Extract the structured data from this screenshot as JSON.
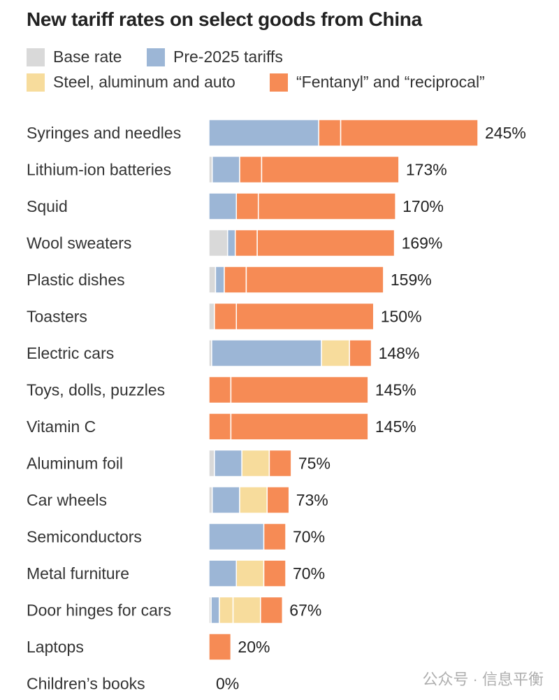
{
  "title": "New tariff rates on select goods from China",
  "legend": [
    {
      "label": "Base rate",
      "color": "#d9d9d9"
    },
    {
      "label": "Pre-2025 tariffs",
      "color": "#9cb6d6"
    },
    {
      "label": "Steel, aluminum and auto",
      "color": "#f7dc9c"
    },
    {
      "label": "“Fentanyl” and “reciprocal”",
      "color": "#f68b55"
    }
  ],
  "chart_data": {
    "type": "bar",
    "orientation": "horizontal",
    "stacked": true,
    "title": "New tariff rates on select goods from China",
    "unit": "%",
    "categories": [
      "Syringes and needles",
      "Lithium-ion batteries",
      "Squid",
      "Wool sweaters",
      "Plastic dishes",
      "Toasters",
      "Electric cars",
      "Toys, dolls, puzzles",
      "Vitamin C",
      "Aluminum foil",
      "Car wheels",
      "Semiconductors",
      "Metal furniture",
      "Door hinges for cars",
      "Laptops",
      "Children’s books"
    ],
    "totals": [
      "245%",
      "173%",
      "170%",
      "169%",
      "159%",
      "150%",
      "148%",
      "145%",
      "145%",
      "75%",
      "73%",
      "70%",
      "70%",
      "67%",
      "20%",
      "0%"
    ],
    "segments": [
      [
        {
          "type": "pre2025",
          "value": 100
        },
        {
          "type": "fentanyl",
          "value": 20
        },
        {
          "type": "fentanyl",
          "value": 125
        }
      ],
      [
        {
          "type": "base",
          "value": 3
        },
        {
          "type": "pre2025",
          "value": 25
        },
        {
          "type": "fentanyl",
          "value": 20
        },
        {
          "type": "fentanyl",
          "value": 125
        }
      ],
      [
        {
          "type": "pre2025",
          "value": 25
        },
        {
          "type": "fentanyl",
          "value": 20
        },
        {
          "type": "fentanyl",
          "value": 125
        }
      ],
      [
        {
          "type": "base",
          "value": 17
        },
        {
          "type": "pre2025",
          "value": 7
        },
        {
          "type": "fentanyl",
          "value": 20
        },
        {
          "type": "fentanyl",
          "value": 125
        }
      ],
      [
        {
          "type": "base",
          "value": 6
        },
        {
          "type": "pre2025",
          "value": 8
        },
        {
          "type": "fentanyl",
          "value": 20
        },
        {
          "type": "fentanyl",
          "value": 125
        }
      ],
      [
        {
          "type": "base",
          "value": 5
        },
        {
          "type": "fentanyl",
          "value": 20
        },
        {
          "type": "fentanyl",
          "value": 125
        }
      ],
      [
        {
          "type": "base",
          "value": 2.5
        },
        {
          "type": "pre2025",
          "value": 100
        },
        {
          "type": "steel",
          "value": 25.5
        },
        {
          "type": "fentanyl",
          "value": 20
        }
      ],
      [
        {
          "type": "fentanyl",
          "value": 20
        },
        {
          "type": "fentanyl",
          "value": 125
        }
      ],
      [
        {
          "type": "fentanyl",
          "value": 20
        },
        {
          "type": "fentanyl",
          "value": 125
        }
      ],
      [
        {
          "type": "base",
          "value": 5
        },
        {
          "type": "pre2025",
          "value": 25
        },
        {
          "type": "steel",
          "value": 25
        },
        {
          "type": "fentanyl",
          "value": 20
        }
      ],
      [
        {
          "type": "base",
          "value": 3
        },
        {
          "type": "pre2025",
          "value": 25
        },
        {
          "type": "steel",
          "value": 25
        },
        {
          "type": "fentanyl",
          "value": 20
        }
      ],
      [
        {
          "type": "pre2025",
          "value": 50
        },
        {
          "type": "fentanyl",
          "value": 20
        }
      ],
      [
        {
          "type": "pre2025",
          "value": 25
        },
        {
          "type": "steel",
          "value": 25
        },
        {
          "type": "fentanyl",
          "value": 20
        }
      ],
      [
        {
          "type": "base",
          "value": 2
        },
        {
          "type": "pre2025",
          "value": 7.5
        },
        {
          "type": "steel",
          "value": 12.5
        },
        {
          "type": "steel",
          "value": 25
        },
        {
          "type": "fentanyl",
          "value": 20
        }
      ],
      [
        {
          "type": "fentanyl",
          "value": 20
        }
      ],
      []
    ],
    "xlim": [
      0,
      245
    ]
  },
  "watermark": "公众号 · 信息平衡"
}
